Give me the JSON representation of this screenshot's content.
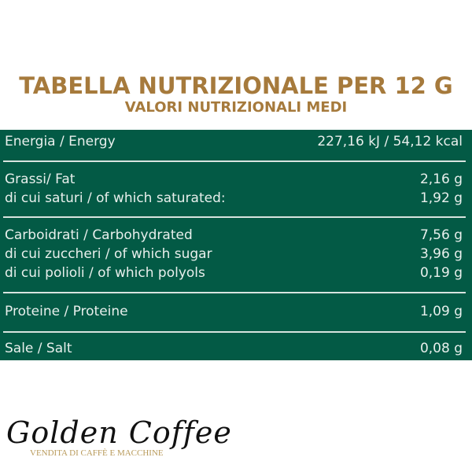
{
  "header": {
    "title": "TABELLA NUTRIZIONALE PER 12 G",
    "subtitle": "VALORI NUTRIZIONALI MEDI"
  },
  "rows": [
    {
      "label": "Energia / Energy",
      "value": "227,16 kJ / 54,12 kcal"
    },
    {
      "label": "Grassi/ Fat",
      "value": "2,16 g"
    },
    {
      "label": "di cui saturi / of which saturated:",
      "value": "1,92 g"
    },
    {
      "label": "Carboidrati / Carbohydrated",
      "value": "7,56 g"
    },
    {
      "label": "di cui zuccheri / of which sugar",
      "value": "3,96 g"
    },
    {
      "label": "di cui polioli / of which polyols",
      "value": "0,19 g"
    },
    {
      "label": "Proteine / Proteine",
      "value": "1,09 g"
    },
    {
      "label": "Sale / Salt",
      "value": "0,08 g"
    }
  ],
  "logo": {
    "name": "Golden Coffee",
    "tagline": "VENDITA DI CAFFÈ E MACCHINE"
  },
  "colors": {
    "accent": "#a67a3c",
    "panel": "#035a45"
  }
}
